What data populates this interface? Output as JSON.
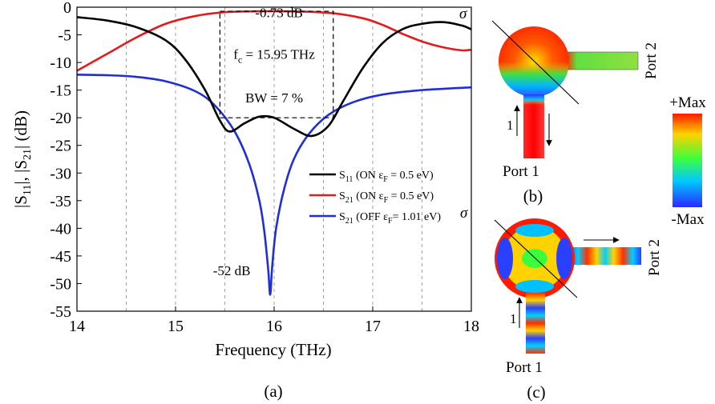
{
  "chart_data": {
    "type": "line",
    "xlabel": "Frequency (THz)",
    "ylabel": "|S11|, |S21| (dB)",
    "xlim": [
      14,
      18
    ],
    "ylim": [
      -55,
      0
    ],
    "xticks": [
      14,
      15,
      16,
      17,
      18
    ],
    "yticks": [
      0,
      -5,
      -10,
      -15,
      -20,
      -25,
      -30,
      -35,
      -40,
      -45,
      -50,
      -55
    ],
    "grid": "vertical dashed",
    "legend_position": "center-right",
    "series": [
      {
        "name": "S11 (ON εF = 0.5 eV)",
        "color": "#000000",
        "x": [
          14.0,
          14.3,
          14.6,
          14.9,
          15.1,
          15.3,
          15.45,
          15.55,
          15.7,
          15.85,
          16.0,
          16.2,
          16.38,
          16.55,
          16.7,
          16.9,
          17.1,
          17.3,
          17.5,
          17.72,
          17.9,
          18.0
        ],
        "y": [
          -1.8,
          -2.4,
          -3.6,
          -6.0,
          -9.5,
          -15.0,
          -20.5,
          -22.5,
          -21.0,
          -19.8,
          -20.0,
          -22.0,
          -23.3,
          -21.5,
          -17.0,
          -11.0,
          -6.5,
          -4.0,
          -3.0,
          -2.7,
          -3.3,
          -4.0
        ]
      },
      {
        "name": "S21 (ON εF = 0.5 eV)",
        "color": "#e41a1c",
        "x": [
          14.0,
          14.3,
          14.6,
          14.9,
          15.2,
          15.5,
          15.8,
          16.0,
          16.3,
          16.6,
          16.9,
          17.1,
          17.3,
          17.5,
          17.7,
          17.9,
          18.0
        ],
        "y": [
          -11.5,
          -8.5,
          -5.5,
          -3.0,
          -1.6,
          -0.9,
          -0.75,
          -0.73,
          -0.8,
          -1.1,
          -2.0,
          -3.2,
          -4.8,
          -6.2,
          -7.2,
          -7.8,
          -7.7
        ]
      },
      {
        "name": "S21 (OFF εF = 1.01 eV)",
        "color": "#1f2fd6",
        "x": [
          14.0,
          14.3,
          14.6,
          14.9,
          15.2,
          15.4,
          15.6,
          15.75,
          15.85,
          15.9,
          15.94,
          15.96,
          15.98,
          16.02,
          16.1,
          16.2,
          16.35,
          16.55,
          16.8,
          17.1,
          17.5,
          18.0
        ],
        "y": [
          -12.2,
          -12.3,
          -12.6,
          -13.4,
          -15.2,
          -17.8,
          -22.5,
          -28.5,
          -35.0,
          -40.5,
          -47.5,
          -52.0,
          -47.0,
          -40.0,
          -33.0,
          -27.5,
          -23.0,
          -19.5,
          -17.2,
          -15.8,
          -15.0,
          -14.5
        ]
      }
    ],
    "annotations": [
      {
        "text": "-0.73 dB",
        "x": 16.05,
        "y": -1.8
      },
      {
        "text": "BW = 7 %",
        "x": 16.0,
        "y": -17.2
      },
      {
        "text": "-52 dB",
        "x": 15.57,
        "y": -48.5
      }
    ],
    "bandwidth_box": {
      "x": [
        15.45,
        16.6
      ],
      "y": [
        -20,
        -0.73
      ]
    },
    "fc_label": {
      "pre": "f",
      "sub": "c",
      "post": " = 15.95 THz",
      "x": 16.0,
      "y": -9.3
    },
    "legend_entries": [
      {
        "main": "S",
        "sub": "11",
        "rest": " (ON ε",
        "sub2": "F",
        "rest2": " = 0.5 eV)"
      },
      {
        "main": "S",
        "sub": "21",
        "rest": " (ON ε",
        "sub2": "F",
        "rest2": " = 0.5 eV)"
      },
      {
        "main": "S",
        "sub": "21",
        "rest": " (OFF ε",
        "sub2": "F",
        "rest2": "= 1.01 eV)"
      }
    ]
  },
  "panels": {
    "a": "(a)",
    "b": "(b)",
    "c": "(c)"
  },
  "field_maps": {
    "sigma": "σ",
    "port1": "Port 1",
    "port2": "Port 2",
    "port_number": "1",
    "colorbar_max": "+Max",
    "colorbar_min": "-Max"
  }
}
